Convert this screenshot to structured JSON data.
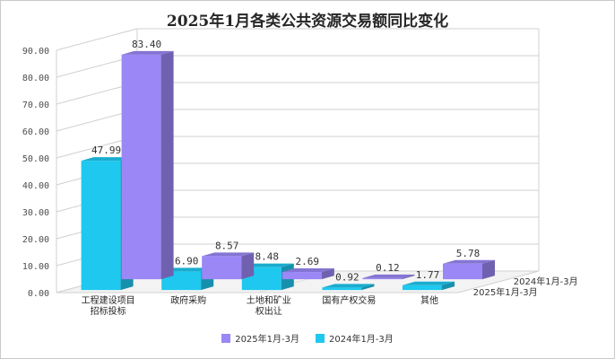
{
  "chart_data": {
    "type": "bar",
    "title": "2025年1月各类公共资源交易额同比变化",
    "categories": [
      [
        "工程建设项目",
        "招标投标"
      ],
      [
        "政府采购"
      ],
      [
        "土地和矿业",
        "权出让"
      ],
      [
        "国有产权交易"
      ],
      [
        "其他"
      ]
    ],
    "series": [
      {
        "name": "2025年1月-3月",
        "values": [
          83.4,
          8.57,
          2.69,
          0.12,
          5.78
        ],
        "color": "#9b87f5"
      },
      {
        "name": "2024年1月-3月",
        "values": [
          47.99,
          6.9,
          8.48,
          0.92,
          1.77
        ],
        "color": "#1ec8ef"
      }
    ],
    "value_labels": [
      [
        "83.40",
        "8.57",
        "2.69",
        "0.12",
        "5.78"
      ],
      [
        "47.99",
        "6.90",
        "8.48",
        "0.92",
        "1.77"
      ]
    ],
    "yticks": [
      "0.00",
      "10.00",
      "20.00",
      "30.00",
      "40.00",
      "50.00",
      "60.00",
      "70.00",
      "80.00",
      "90.00"
    ],
    "ylim": [
      0,
      90
    ],
    "legend_position": "bottom",
    "depth_labels": [
      "2025年1月-3月",
      "2024年1月-3月"
    ],
    "grid": true,
    "style": "3d"
  }
}
